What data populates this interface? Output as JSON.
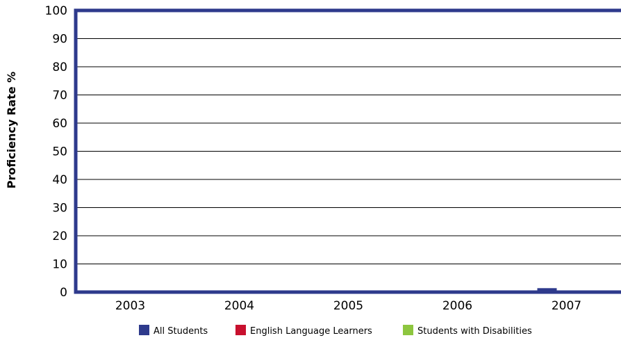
{
  "chart_data": {
    "type": "bar",
    "title": "",
    "xlabel": "",
    "ylabel": "Proficiency Rate %",
    "ylim": [
      0,
      100
    ],
    "yticks": [
      "0",
      "10",
      "20",
      "30",
      "40",
      "50",
      "60",
      "70",
      "80",
      "90",
      "100"
    ],
    "grid": true,
    "legend_position": "bottom",
    "categories": [
      "2003",
      "2004",
      "2005",
      "2006",
      "2007"
    ],
    "series": [
      {
        "name": "All Students",
        "color": "#2e3a8c",
        "values": [
          0,
          0,
          0,
          0.6,
          1.4
        ]
      },
      {
        "name": "English Language Learners",
        "color": "#c8102e",
        "values": [
          0,
          0,
          0,
          0,
          0
        ]
      },
      {
        "name": "Students with Disabilities",
        "color": "#8dc63f",
        "values": [
          0,
          0,
          0,
          0,
          0
        ]
      }
    ],
    "frame_color": "#2e3a8c"
  }
}
